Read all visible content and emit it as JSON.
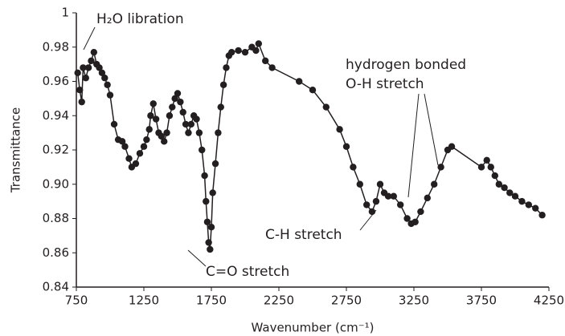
{
  "chart_data": {
    "type": "line",
    "xlabel": "Wavenumber  (cm⁻¹)",
    "ylabel": "Transmittance",
    "color": "#231f20",
    "x": [
      760,
      775,
      790,
      800,
      820,
      840,
      860,
      880,
      900,
      920,
      940,
      960,
      980,
      1000,
      1030,
      1060,
      1090,
      1110,
      1140,
      1160,
      1190,
      1220,
      1250,
      1270,
      1290,
      1300,
      1320,
      1340,
      1360,
      1380,
      1400,
      1420,
      1440,
      1460,
      1480,
      1500,
      1520,
      1540,
      1560,
      1580,
      1600,
      1620,
      1640,
      1660,
      1680,
      1700,
      1710,
      1720,
      1730,
      1740,
      1750,
      1760,
      1780,
      1800,
      1820,
      1840,
      1860,
      1880,
      1900,
      1950,
      2000,
      2050,
      2080,
      2100,
      2150,
      2200,
      2400,
      2500,
      2600,
      2700,
      2750,
      2800,
      2850,
      2900,
      2940,
      2970,
      3000,
      3030,
      3060,
      3100,
      3150,
      3200,
      3230,
      3260,
      3300,
      3350,
      3400,
      3450,
      3500,
      3530,
      3750,
      3790,
      3820,
      3850,
      3880,
      3920,
      3960,
      4000,
      4050,
      4100,
      4150,
      4200
    ],
    "series": [
      {
        "name": "Transmittance",
        "color": "#231f20",
        "values": [
          0.965,
          0.955,
          0.948,
          0.968,
          0.962,
          0.968,
          0.972,
          0.977,
          0.97,
          0.968,
          0.965,
          0.962,
          0.958,
          0.952,
          0.935,
          0.926,
          0.925,
          0.922,
          0.915,
          0.91,
          0.912,
          0.918,
          0.922,
          0.926,
          0.932,
          0.94,
          0.947,
          0.938,
          0.93,
          0.928,
          0.925,
          0.93,
          0.94,
          0.945,
          0.95,
          0.953,
          0.948,
          0.942,
          0.935,
          0.93,
          0.935,
          0.94,
          0.938,
          0.93,
          0.92,
          0.905,
          0.89,
          0.878,
          0.866,
          0.862,
          0.875,
          0.895,
          0.912,
          0.93,
          0.945,
          0.958,
          0.968,
          0.975,
          0.977,
          0.978,
          0.977,
          0.98,
          0.978,
          0.982,
          0.972,
          0.968,
          0.96,
          0.955,
          0.945,
          0.932,
          0.922,
          0.91,
          0.9,
          0.888,
          0.884,
          0.89,
          0.9,
          0.895,
          0.893,
          0.893,
          0.888,
          0.88,
          0.877,
          0.878,
          0.884,
          0.892,
          0.9,
          0.91,
          0.92,
          0.922,
          0.91,
          0.914,
          0.91,
          0.905,
          0.9,
          0.898,
          0.895,
          0.893,
          0.89,
          0.888,
          0.886,
          0.882
        ]
      }
    ],
    "xlim": [
      750,
      4250
    ],
    "xticks": [
      750,
      1250,
      1750,
      2250,
      2750,
      3250,
      3750,
      4250
    ],
    "ylim": [
      0.84,
      1
    ],
    "yticks": [
      0.84,
      0.86,
      0.88,
      {
        "value": 0.9,
        "label": "0.90"
      },
      0.92,
      0.94,
      0.96,
      0.98,
      1
    ],
    "annotations": [
      "H₂O libration",
      "C=O stretch",
      "C-H stretch",
      "hydrogen bonded",
      "O-H stretch"
    ]
  }
}
